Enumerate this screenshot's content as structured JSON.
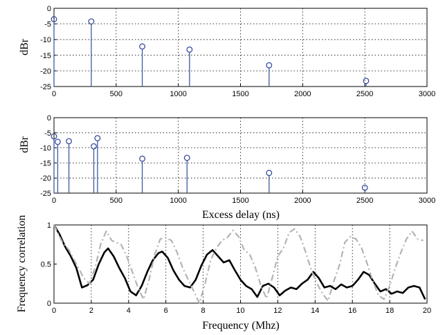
{
  "chart_data": [
    {
      "type": "stem",
      "title": "",
      "xlabel": "",
      "ylabel": "dBr",
      "xlim": [
        0,
        3000
      ],
      "ylim": [
        -25,
        0
      ],
      "xticks": [
        0,
        500,
        1000,
        1500,
        2000,
        2500,
        3000
      ],
      "yticks": [
        0,
        -5,
        -10,
        -15,
        -20,
        -25
      ],
      "grid": true,
      "x": [
        0,
        300,
        710,
        1090,
        1730,
        2510
      ],
      "values": [
        -3.5,
        -4.2,
        -12.2,
        -13.2,
        -18.2,
        -23.2
      ]
    },
    {
      "type": "stem",
      "title": "",
      "xlabel": "Excess delay (ns)",
      "ylabel": "dBr",
      "xlim": [
        0,
        3000
      ],
      "ylim": [
        -25,
        0
      ],
      "xticks": [
        0,
        500,
        1000,
        1500,
        2000,
        2500,
        3000
      ],
      "yticks": [
        0,
        -5,
        -10,
        -15,
        -20,
        -25
      ],
      "grid": true,
      "x": [
        0,
        30,
        120,
        320,
        350,
        710,
        1070,
        1730,
        2500
      ],
      "values": [
        -6.2,
        -8.0,
        -7.8,
        -9.5,
        -6.8,
        -13.6,
        -13.3,
        -18.3,
        -23.2
      ]
    },
    {
      "type": "line",
      "title": "",
      "xlabel": "Frequency (Mhz)",
      "ylabel": "Frequency correlation",
      "xlim": [
        0,
        20
      ],
      "ylim": [
        0,
        1
      ],
      "xticks": [
        0,
        2,
        4,
        6,
        8,
        10,
        12,
        14,
        16,
        18,
        20
      ],
      "yticks": [
        1,
        0.5,
        0
      ],
      "grid": "x-only",
      "series": [
        {
          "style": "solid-black",
          "x": [
            0,
            0.3,
            0.6,
            0.9,
            1.2,
            1.5,
            1.8,
            2.1,
            2.4,
            2.7,
            2.9,
            3.2,
            3.5,
            3.8,
            4.1,
            4.4,
            4.7,
            5.0,
            5.3,
            5.6,
            5.8,
            6.1,
            6.4,
            6.7,
            7.0,
            7.3,
            7.6,
            7.9,
            8.2,
            8.5,
            8.8,
            9.1,
            9.4,
            9.7,
            10.0,
            10.3,
            10.6,
            10.9,
            11.2,
            11.5,
            11.8,
            12.1,
            12.4,
            12.7,
            13.0,
            13.3,
            13.6,
            13.9,
            14.2,
            14.5,
            14.8,
            15.1,
            15.4,
            15.7,
            16.0,
            16.3,
            16.6,
            16.9,
            17.2,
            17.5,
            17.8,
            18.1,
            18.4,
            18.7,
            19.0,
            19.3,
            19.6,
            19.9
          ],
          "y": [
            1.0,
            0.88,
            0.72,
            0.6,
            0.45,
            0.2,
            0.23,
            0.3,
            0.5,
            0.65,
            0.7,
            0.6,
            0.45,
            0.32,
            0.15,
            0.1,
            0.22,
            0.4,
            0.55,
            0.64,
            0.66,
            0.58,
            0.42,
            0.3,
            0.22,
            0.2,
            0.3,
            0.48,
            0.62,
            0.68,
            0.6,
            0.52,
            0.55,
            0.42,
            0.3,
            0.22,
            0.18,
            0.08,
            0.22,
            0.25,
            0.2,
            0.1,
            0.16,
            0.2,
            0.18,
            0.25,
            0.3,
            0.4,
            0.32,
            0.2,
            0.22,
            0.18,
            0.24,
            0.2,
            0.22,
            0.3,
            0.4,
            0.36,
            0.25,
            0.15,
            0.18,
            0.12,
            0.15,
            0.13,
            0.2,
            0.22,
            0.2,
            0.05
          ]
        },
        {
          "style": "dashdot-gray",
          "x": [
            0,
            0.4,
            0.8,
            1.2,
            1.6,
            1.9,
            2.2,
            2.5,
            2.8,
            3.1,
            3.3,
            3.6,
            3.9,
            4.2,
            4.5,
            4.8,
            5.1,
            5.4,
            5.7,
            6.0,
            6.3,
            6.6,
            6.9,
            7.2,
            7.5,
            7.8,
            8.1,
            8.4,
            8.7,
            9.0,
            9.3,
            9.6,
            9.9,
            10.2,
            10.5,
            10.8,
            11.1,
            11.4,
            11.7,
            12.0,
            12.3,
            12.6,
            12.9,
            13.2,
            13.5,
            13.8,
            14.1,
            14.4,
            14.7,
            15.0,
            15.3,
            15.6,
            15.9,
            16.2,
            16.5,
            16.8,
            17.1,
            17.4,
            17.7,
            18.0,
            18.3,
            18.6,
            18.9,
            19.2,
            19.5,
            19.8
          ],
          "y": [
            1.0,
            0.8,
            0.68,
            0.5,
            0.32,
            0.25,
            0.45,
            0.75,
            0.92,
            0.8,
            0.78,
            0.75,
            0.6,
            0.4,
            0.2,
            0.05,
            0.3,
            0.62,
            0.82,
            0.84,
            0.8,
            0.65,
            0.45,
            0.3,
            0.15,
            0.0,
            0.25,
            0.55,
            0.7,
            0.8,
            0.84,
            0.93,
            0.85,
            0.68,
            0.62,
            0.45,
            0.22,
            0.06,
            0.32,
            0.6,
            0.7,
            0.9,
            0.95,
            0.85,
            0.65,
            0.42,
            0.25,
            0.12,
            0.03,
            0.28,
            0.48,
            0.78,
            0.85,
            0.82,
            0.7,
            0.5,
            0.28,
            0.1,
            0.05,
            0.22,
            0.45,
            0.65,
            0.82,
            0.92,
            0.82,
            0.8
          ]
        }
      ]
    }
  ]
}
